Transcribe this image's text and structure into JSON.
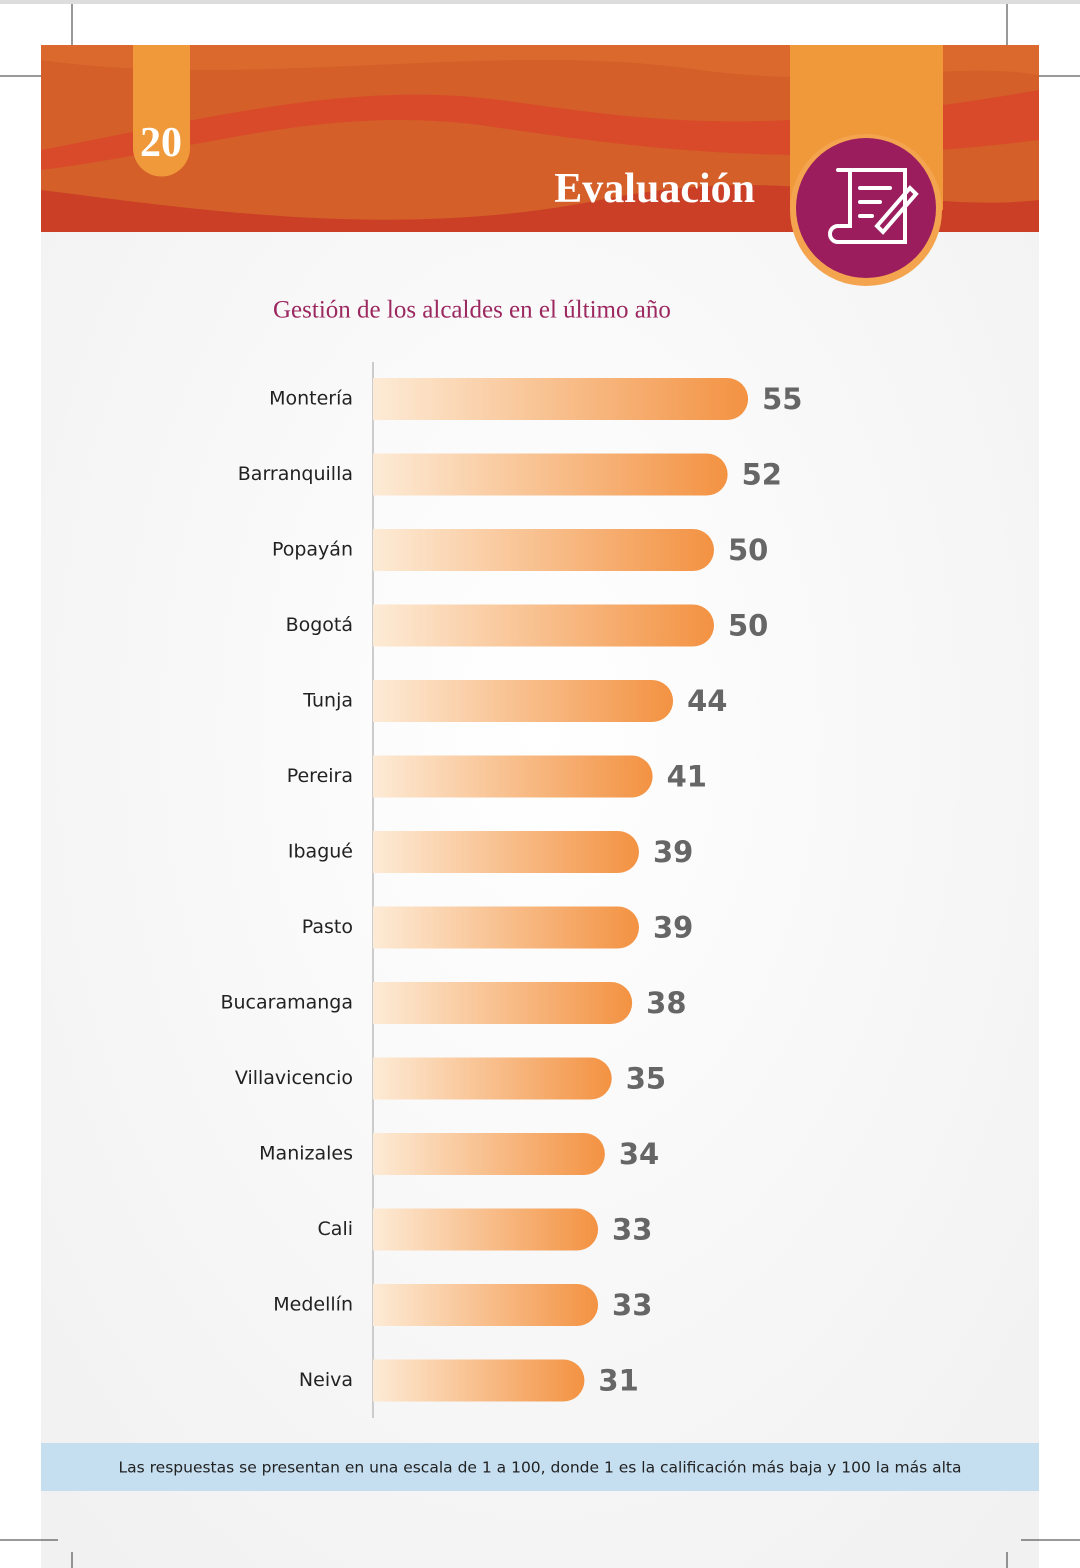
{
  "page_number": "20",
  "section": "Evaluación",
  "chart_data": {
    "type": "bar",
    "title": "Gestión de los alcaldes en el último año",
    "categories": [
      "Montería",
      "Barranquilla",
      "Popayán",
      "Bogotá",
      "Tunja",
      "Pereira",
      "Ibagué",
      "Pasto",
      "Bucaramanga",
      "Villavicencio",
      "Manizales",
      "Cali",
      "Medellín",
      "Neiva"
    ],
    "values": [
      55,
      52,
      50,
      50,
      44,
      41,
      39,
      39,
      38,
      35,
      34,
      33,
      33,
      31
    ],
    "color": "#f39242"
  },
  "footnote": "Las respuestas se presentan en una escala de 1 a 100, donde 1 es la calificación más baja y 100 la más alta"
}
